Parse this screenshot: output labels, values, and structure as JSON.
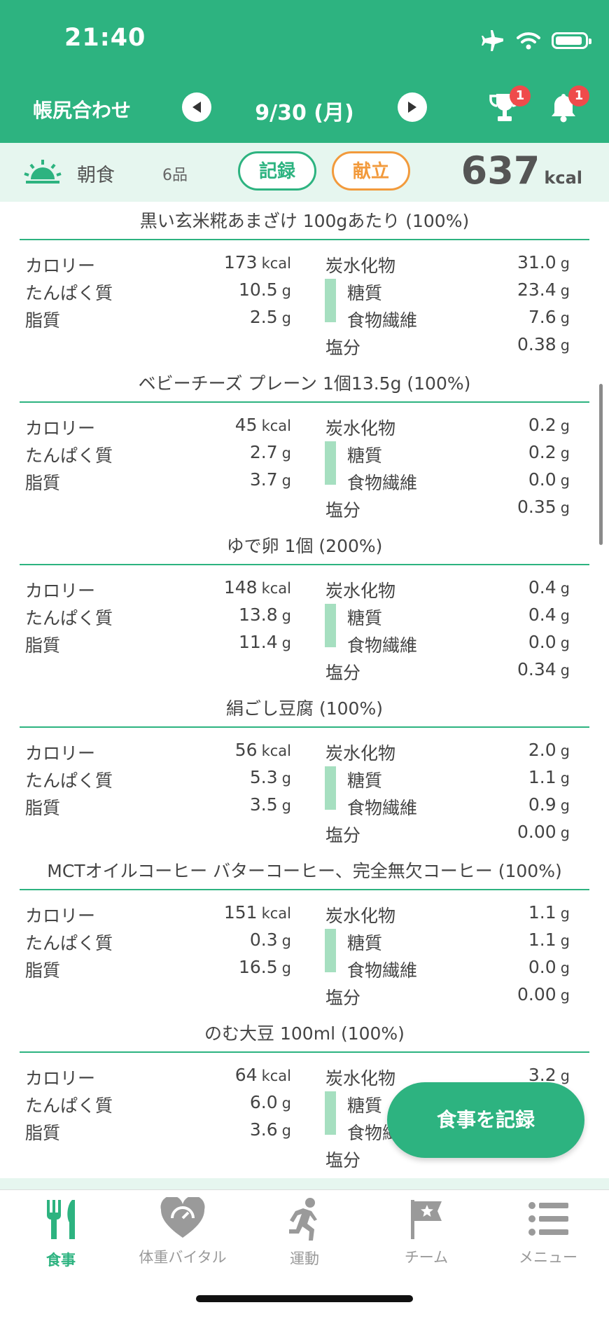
{
  "status": {
    "time": "21:40"
  },
  "header": {
    "title": "帳尻合わせ",
    "date": "9/30 (月)",
    "trophy_badge": "1",
    "bell_badge": "1"
  },
  "meal": {
    "name": "朝食",
    "count": "6品",
    "record_label": "記録",
    "menu_label": "献立",
    "kcal": "637",
    "kcal_unit": "kcal"
  },
  "labels": {
    "calorie": "カロリー",
    "protein": "たんぱく質",
    "fat": "脂質",
    "carbs": "炭水化物",
    "sugar": "糖質",
    "fiber": "食物繊維",
    "salt": "塩分",
    "kcal_unit": "kcal",
    "g_unit": "g"
  },
  "items": [
    {
      "title": "黒い玄米糀あまざけ 100gあたり  (100%)",
      "calorie": "173",
      "protein": "10.5",
      "fat": "2.5",
      "carbs": "31.0",
      "sugar": "23.4",
      "fiber": "7.6",
      "salt": "0.38"
    },
    {
      "title": "ベビーチーズ プレーン 1個13.5g  (100%)",
      "calorie": "45",
      "protein": "2.7",
      "fat": "3.7",
      "carbs": "0.2",
      "sugar": "0.2",
      "fiber": "0.0",
      "salt": "0.35"
    },
    {
      "title": "ゆで卵 1個  (200%)",
      "calorie": "148",
      "protein": "13.8",
      "fat": "11.4",
      "carbs": "0.4",
      "sugar": "0.4",
      "fiber": "0.0",
      "salt": "0.34"
    },
    {
      "title": "絹ごし豆腐  (100%)",
      "calorie": "56",
      "protein": "5.3",
      "fat": "3.5",
      "carbs": "2.0",
      "sugar": "1.1",
      "fiber": "0.9",
      "salt": "0.00"
    },
    {
      "title": "MCTオイルコーヒー バターコーヒー、完全無欠コーヒー  (100%)",
      "calorie": "151",
      "protein": "0.3",
      "fat": "16.5",
      "carbs": "1.1",
      "sugar": "1.1",
      "fiber": "0.0",
      "salt": "0.00"
    },
    {
      "title": "のむ大豆 100ml  (100%)",
      "calorie": "64",
      "protein": "6.0",
      "fat": "3.6",
      "carbs": "3.2",
      "sugar": "",
      "fiber": "",
      "salt": ""
    }
  ],
  "fab_label": "食事を記録",
  "tabs": [
    {
      "label": "食事",
      "icon": "fork-knife-icon",
      "active": true
    },
    {
      "label": "体重バイタル",
      "icon": "heart-scale-icon",
      "active": false
    },
    {
      "label": "運動",
      "icon": "runner-icon",
      "active": false
    },
    {
      "label": "チーム",
      "icon": "flag-icon",
      "active": false
    },
    {
      "label": "メニュー",
      "icon": "list-icon",
      "active": false
    }
  ],
  "colors": {
    "primary": "#2db380",
    "accent_orange": "#f29a3c",
    "badge_red": "#ef4b4b",
    "meal_bar_bg": "#e6f6ef",
    "sugar_bar": "#a6dfc0"
  }
}
